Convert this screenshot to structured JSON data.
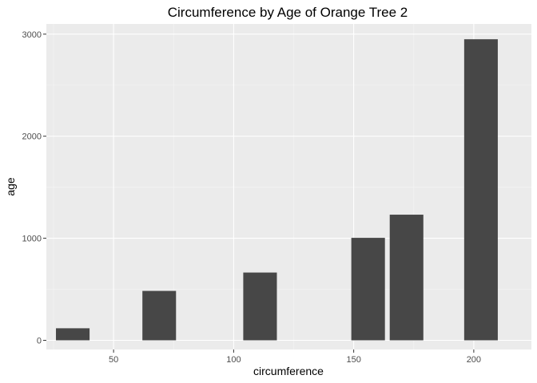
{
  "chart_data": {
    "type": "bar",
    "title": "Circumference by Age of Orange Tree 2",
    "xlabel": "circumference",
    "ylabel": "age",
    "x": [
      33,
      69,
      111,
      156,
      172,
      203
    ],
    "values": [
      118,
      484,
      664,
      1004,
      1231,
      2950
    ],
    "bar_width": 14,
    "xlim": [
      22,
      224
    ],
    "ylim": [
      -90,
      3100
    ],
    "x_ticks": [
      50,
      100,
      150,
      200
    ],
    "x_tick_labels": [
      "50",
      "100",
      "150",
      "200"
    ],
    "y_ticks": [
      0,
      1000,
      2000,
      3000
    ],
    "y_tick_labels": [
      "0",
      "1000",
      "2000",
      "3000"
    ],
    "grid": true,
    "legend": "none",
    "colors": {
      "bar": "#474747",
      "panel": "#ebebeb",
      "grid_major": "#ffffff",
      "grid_minor": "#f5f5f5",
      "tick": "#333333"
    }
  }
}
